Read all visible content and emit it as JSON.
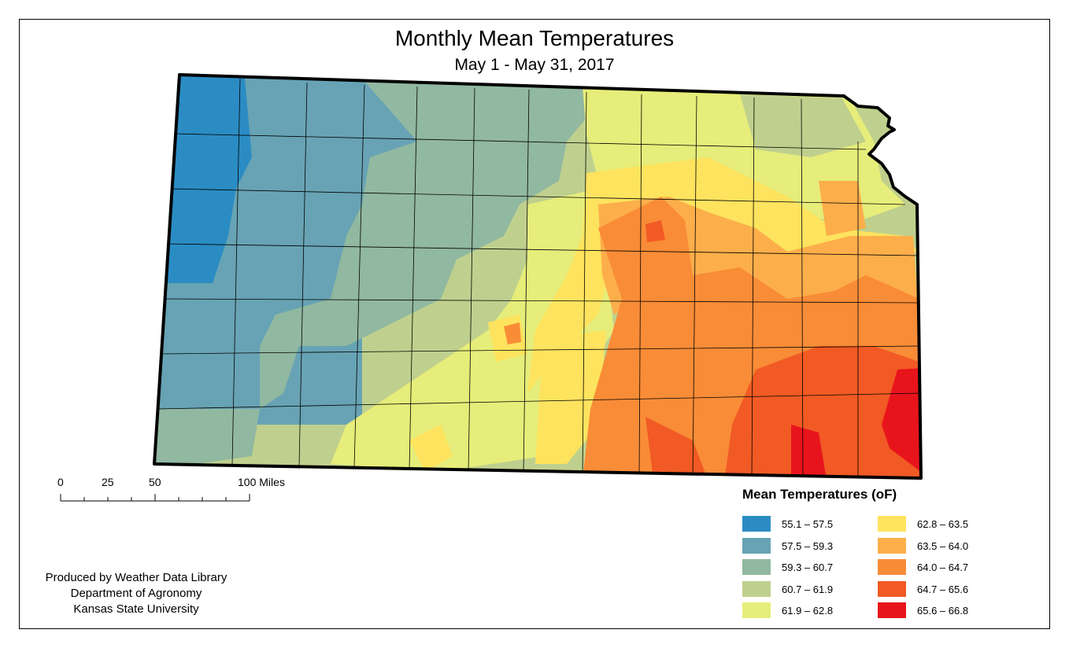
{
  "map": {
    "title": "Monthly Mean Temperatures",
    "subtitle": "May 1 - May 31, 2017",
    "region_shape": "Kansas",
    "background_color": "#ffffff",
    "border_color": "#000000"
  },
  "scale_bar": {
    "ticks": [
      "0",
      "25",
      "50",
      "100 Miles"
    ]
  },
  "credits": {
    "line1": "Produced by Weather Data Library",
    "line2": "Department of Agronomy",
    "line3": "Kansas State University"
  },
  "legend": {
    "title": "Mean Temperatures (oF)",
    "items": [
      {
        "label": "55.1 – 57.5",
        "color": "#2b8cc4"
      },
      {
        "label": "57.5 – 59.3",
        "color": "#67a3b4"
      },
      {
        "label": "59.3 – 60.7",
        "color": "#91b8a0"
      },
      {
        "label": "60.7 – 61.9",
        "color": "#bfd08e"
      },
      {
        "label": "61.9 – 62.8",
        "color": "#e6ed7a"
      },
      {
        "label": "62.8 – 63.5",
        "color": "#fde35e"
      },
      {
        "label": "63.5 – 64.0",
        "color": "#fcae4a"
      },
      {
        "label": "64.0 – 64.7",
        "color": "#f98c37"
      },
      {
        "label": "64.7 – 65.6",
        "color": "#f15a24"
      },
      {
        "label": "65.6 – 66.8",
        "color": "#e8141c"
      }
    ]
  }
}
